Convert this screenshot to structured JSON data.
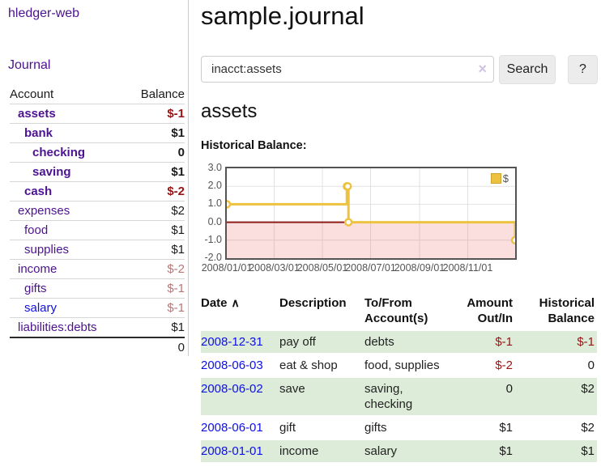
{
  "app": {
    "brand": "hledger-web"
  },
  "nav": {
    "journal": "Journal"
  },
  "sidebar": {
    "headers": {
      "account": "Account",
      "balance": "Balance"
    },
    "accounts": [
      {
        "name": "assets",
        "balance": "$-1",
        "depth": 0,
        "emph": true,
        "tone": "negative",
        "link_tone": "visited"
      },
      {
        "name": "bank",
        "balance": "$1",
        "depth": 1,
        "emph": true,
        "tone": "normal",
        "link_tone": "visited"
      },
      {
        "name": "checking",
        "balance": "0",
        "depth": 2,
        "emph": true,
        "tone": "normal",
        "link_tone": "visited"
      },
      {
        "name": "saving",
        "balance": "$1",
        "depth": 2,
        "emph": true,
        "tone": "normal",
        "link_tone": "visited"
      },
      {
        "name": "cash",
        "balance": "$-2",
        "depth": 1,
        "emph": true,
        "tone": "negative",
        "link_tone": "visited"
      },
      {
        "name": "expenses",
        "balance": "$2",
        "depth": 0,
        "emph": false,
        "tone": "normal",
        "link_tone": "visited"
      },
      {
        "name": "food",
        "balance": "$1",
        "depth": 1,
        "emph": false,
        "tone": "normal",
        "link_tone": "visited"
      },
      {
        "name": "supplies",
        "balance": "$1",
        "depth": 1,
        "emph": false,
        "tone": "normal",
        "link_tone": "visited"
      },
      {
        "name": "income",
        "balance": "$-2",
        "depth": 0,
        "emph": false,
        "tone": "negative-muted",
        "link_tone": "visited"
      },
      {
        "name": "gifts",
        "balance": "$-1",
        "depth": 1,
        "emph": false,
        "tone": "negative-muted",
        "link_tone": "visited"
      },
      {
        "name": "salary",
        "balance": "$-1",
        "depth": 1,
        "emph": false,
        "tone": "negative-muted",
        "link_tone": "unvisited"
      },
      {
        "name": "liabilities:debts",
        "balance": "$1",
        "depth": 0,
        "emph": false,
        "tone": "normal",
        "link_tone": "visited"
      }
    ],
    "total": "0"
  },
  "header": {
    "title": "sample.journal"
  },
  "search": {
    "query": "inacct:assets",
    "button": "Search",
    "help": "?"
  },
  "icons": {
    "clear": "×",
    "sort_asc": "∧"
  },
  "account_page": {
    "heading": "assets",
    "chart_title": "Historical Balance:"
  },
  "chart_data": {
    "type": "line",
    "step": true,
    "title": "Historical Balance:",
    "x_range": [
      "2008-01-01",
      "2008-12-31"
    ],
    "ylim": [
      -2.0,
      3.0
    ],
    "y_ticks": [
      "3.0",
      "2.0",
      "1.0",
      "0.0",
      "-1.0",
      "-2.0"
    ],
    "y_tick_values": [
      3,
      2,
      1,
      0,
      -1,
      -2
    ],
    "x_ticks": [
      "2008/01/01",
      "2008/03/01",
      "2008/05/01",
      "2008/07/01",
      "2008/09/01",
      "2008/11/01"
    ],
    "legend_position": "top-right",
    "grid": true,
    "series": [
      {
        "name": "$",
        "color": "#edc240",
        "points": [
          [
            "2008-01-01",
            1
          ],
          [
            "2008-06-01",
            2
          ],
          [
            "2008-06-02",
            2
          ],
          [
            "2008-06-03",
            0
          ],
          [
            "2008-12-31",
            -1
          ]
        ]
      }
    ],
    "negative_region_color": "rgba(235,80,80,0.18)",
    "zero_line_color": "#8e1a1a",
    "gridline_color": "#e2e2e2"
  },
  "register": {
    "columns": [
      "Date",
      "Description",
      "To/From Account(s)",
      "Amount Out/In",
      "Historical Balance"
    ],
    "rows": [
      {
        "date": "2008-12-31",
        "description": "pay off",
        "accounts": "debts",
        "amount": "$-1",
        "amount_negative": true,
        "balance": "$-1",
        "balance_negative": true,
        "shade": true
      },
      {
        "date": "2008-06-03",
        "description": "eat & shop",
        "accounts": "food, supplies",
        "amount": "$-2",
        "amount_negative": true,
        "balance": "0",
        "balance_negative": false,
        "shade": false
      },
      {
        "date": "2008-06-02",
        "description": "save",
        "accounts": "saving, checking",
        "amount": "0",
        "amount_negative": false,
        "balance": "$2",
        "balance_negative": false,
        "shade": true
      },
      {
        "date": "2008-06-01",
        "description": "gift",
        "accounts": "gifts",
        "amount": "$1",
        "amount_negative": false,
        "balance": "$2",
        "balance_negative": false,
        "shade": false
      },
      {
        "date": "2008-01-01",
        "description": "income",
        "accounts": "salary",
        "amount": "$1",
        "amount_negative": false,
        "balance": "$1",
        "balance_negative": false,
        "shade": true
      }
    ]
  }
}
